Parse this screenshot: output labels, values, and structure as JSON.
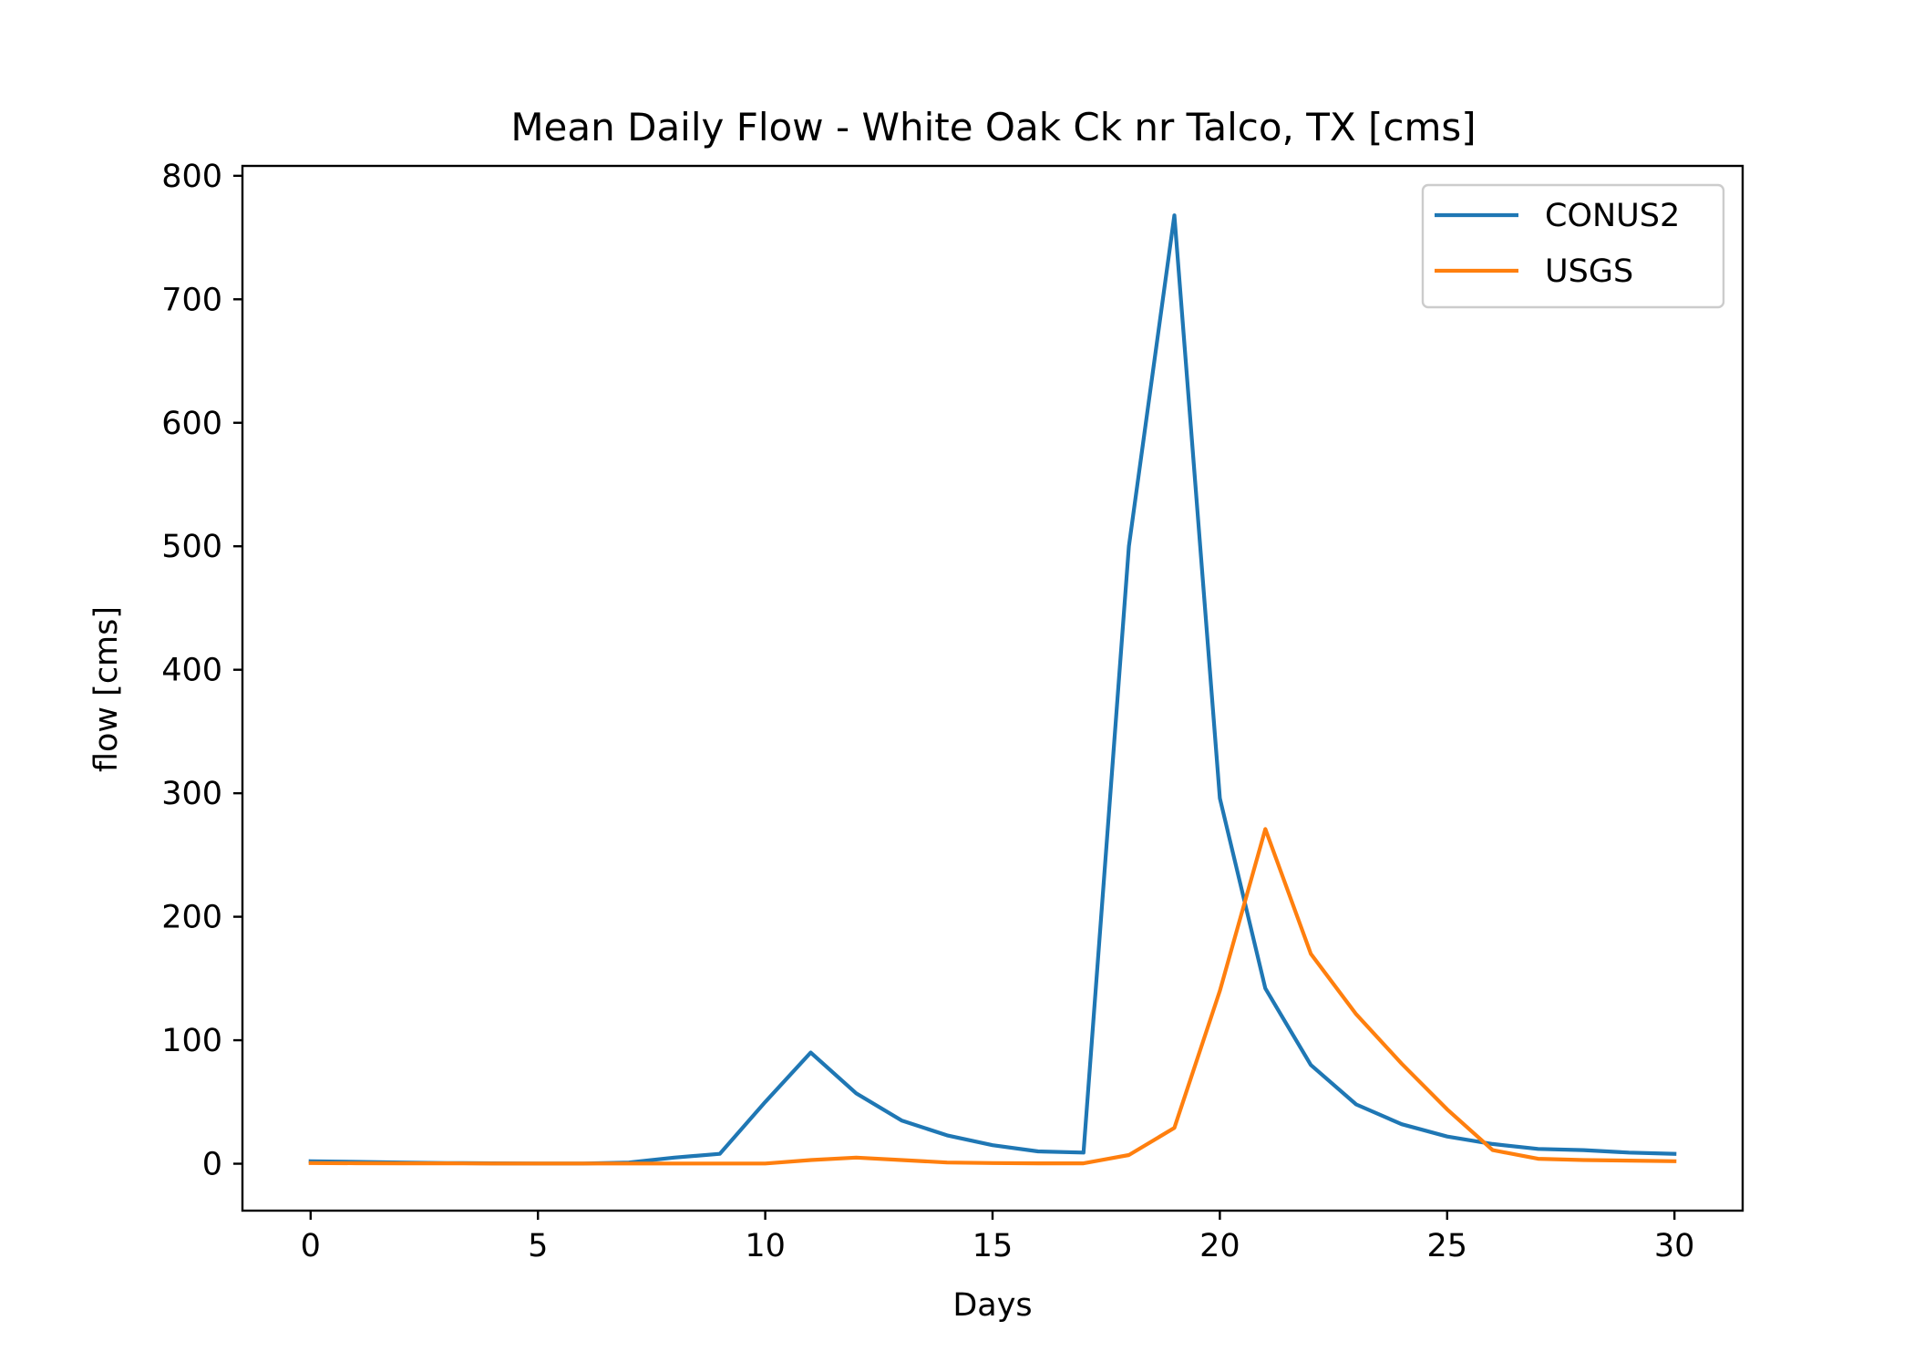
{
  "chart_data": {
    "type": "line",
    "title": "Mean Daily Flow - White Oak Ck nr Talco, TX [cms]",
    "xlabel": "Days",
    "ylabel": "flow [cms]",
    "xlim": [
      -1.5,
      31.5
    ],
    "ylim": [
      -38,
      808
    ],
    "xticks": [
      "0",
      "5",
      "10",
      "15",
      "20",
      "25",
      "30"
    ],
    "yticks": [
      "0",
      "100",
      "200",
      "300",
      "400",
      "500",
      "600",
      "700",
      "800"
    ],
    "grid": false,
    "legend_position": "top-right",
    "x": [
      0,
      1,
      2,
      3,
      4,
      5,
      6,
      7,
      8,
      9,
      10,
      11,
      12,
      13,
      14,
      15,
      16,
      17,
      18,
      19,
      20,
      21,
      22,
      23,
      24,
      25,
      26,
      27,
      28,
      29,
      30
    ],
    "series": [
      {
        "name": "CONUS2",
        "color": "#1f77b4",
        "values": [
          2,
          1.5,
          1,
          0.5,
          0.3,
          0.2,
          0.2,
          1,
          5,
          8,
          50,
          90,
          57,
          35,
          23,
          15,
          10,
          9,
          500,
          768,
          296,
          142,
          80,
          48,
          32,
          22,
          16,
          12,
          11,
          9,
          8
        ]
      },
      {
        "name": "USGS",
        "color": "#ff7f0e",
        "values": [
          0.5,
          0.4,
          0.3,
          0.3,
          0.2,
          0.2,
          0.2,
          0.2,
          0.2,
          0.2,
          0.2,
          3,
          5,
          3,
          1,
          0.5,
          0.3,
          0.3,
          7,
          29,
          140,
          271,
          170,
          121,
          81,
          44,
          11,
          4,
          3,
          2.5,
          2
        ]
      }
    ]
  }
}
